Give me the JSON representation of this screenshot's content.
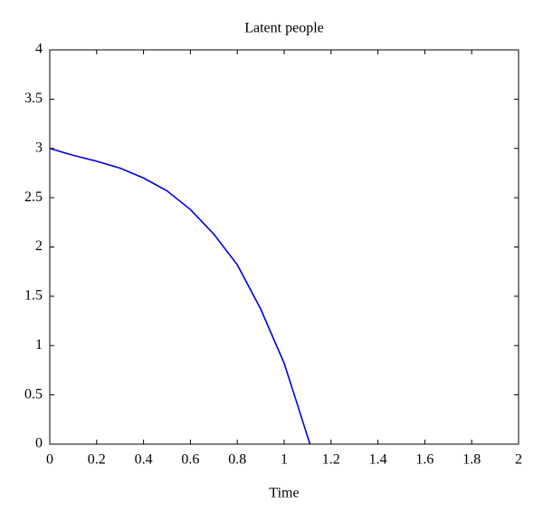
{
  "chart_data": {
    "type": "line",
    "title": "Latent people",
    "x_label": "Time",
    "x": [
      0,
      0.1,
      0.2,
      0.3,
      0.4,
      0.5,
      0.6,
      0.7,
      0.8,
      0.9,
      1.0,
      1.05,
      1.11
    ],
    "series": [
      {
        "name": "Latent people",
        "color": "#0000dd",
        "values": [
          3.0,
          2.93,
          2.87,
          2.8,
          2.7,
          2.57,
          2.38,
          2.13,
          1.82,
          1.37,
          0.82,
          0.45,
          0
        ]
      }
    ],
    "xlim": [
      0,
      2
    ],
    "xticks": [
      0,
      0.2,
      0.4,
      0.6,
      0.8,
      1,
      1.2,
      1.4,
      1.6,
      1.8,
      2
    ],
    "ylim": [
      0,
      4
    ],
    "yticks": [
      0,
      0.5,
      1,
      1.5,
      2,
      2.5,
      3,
      3.5,
      4
    ],
    "grid": false
  }
}
